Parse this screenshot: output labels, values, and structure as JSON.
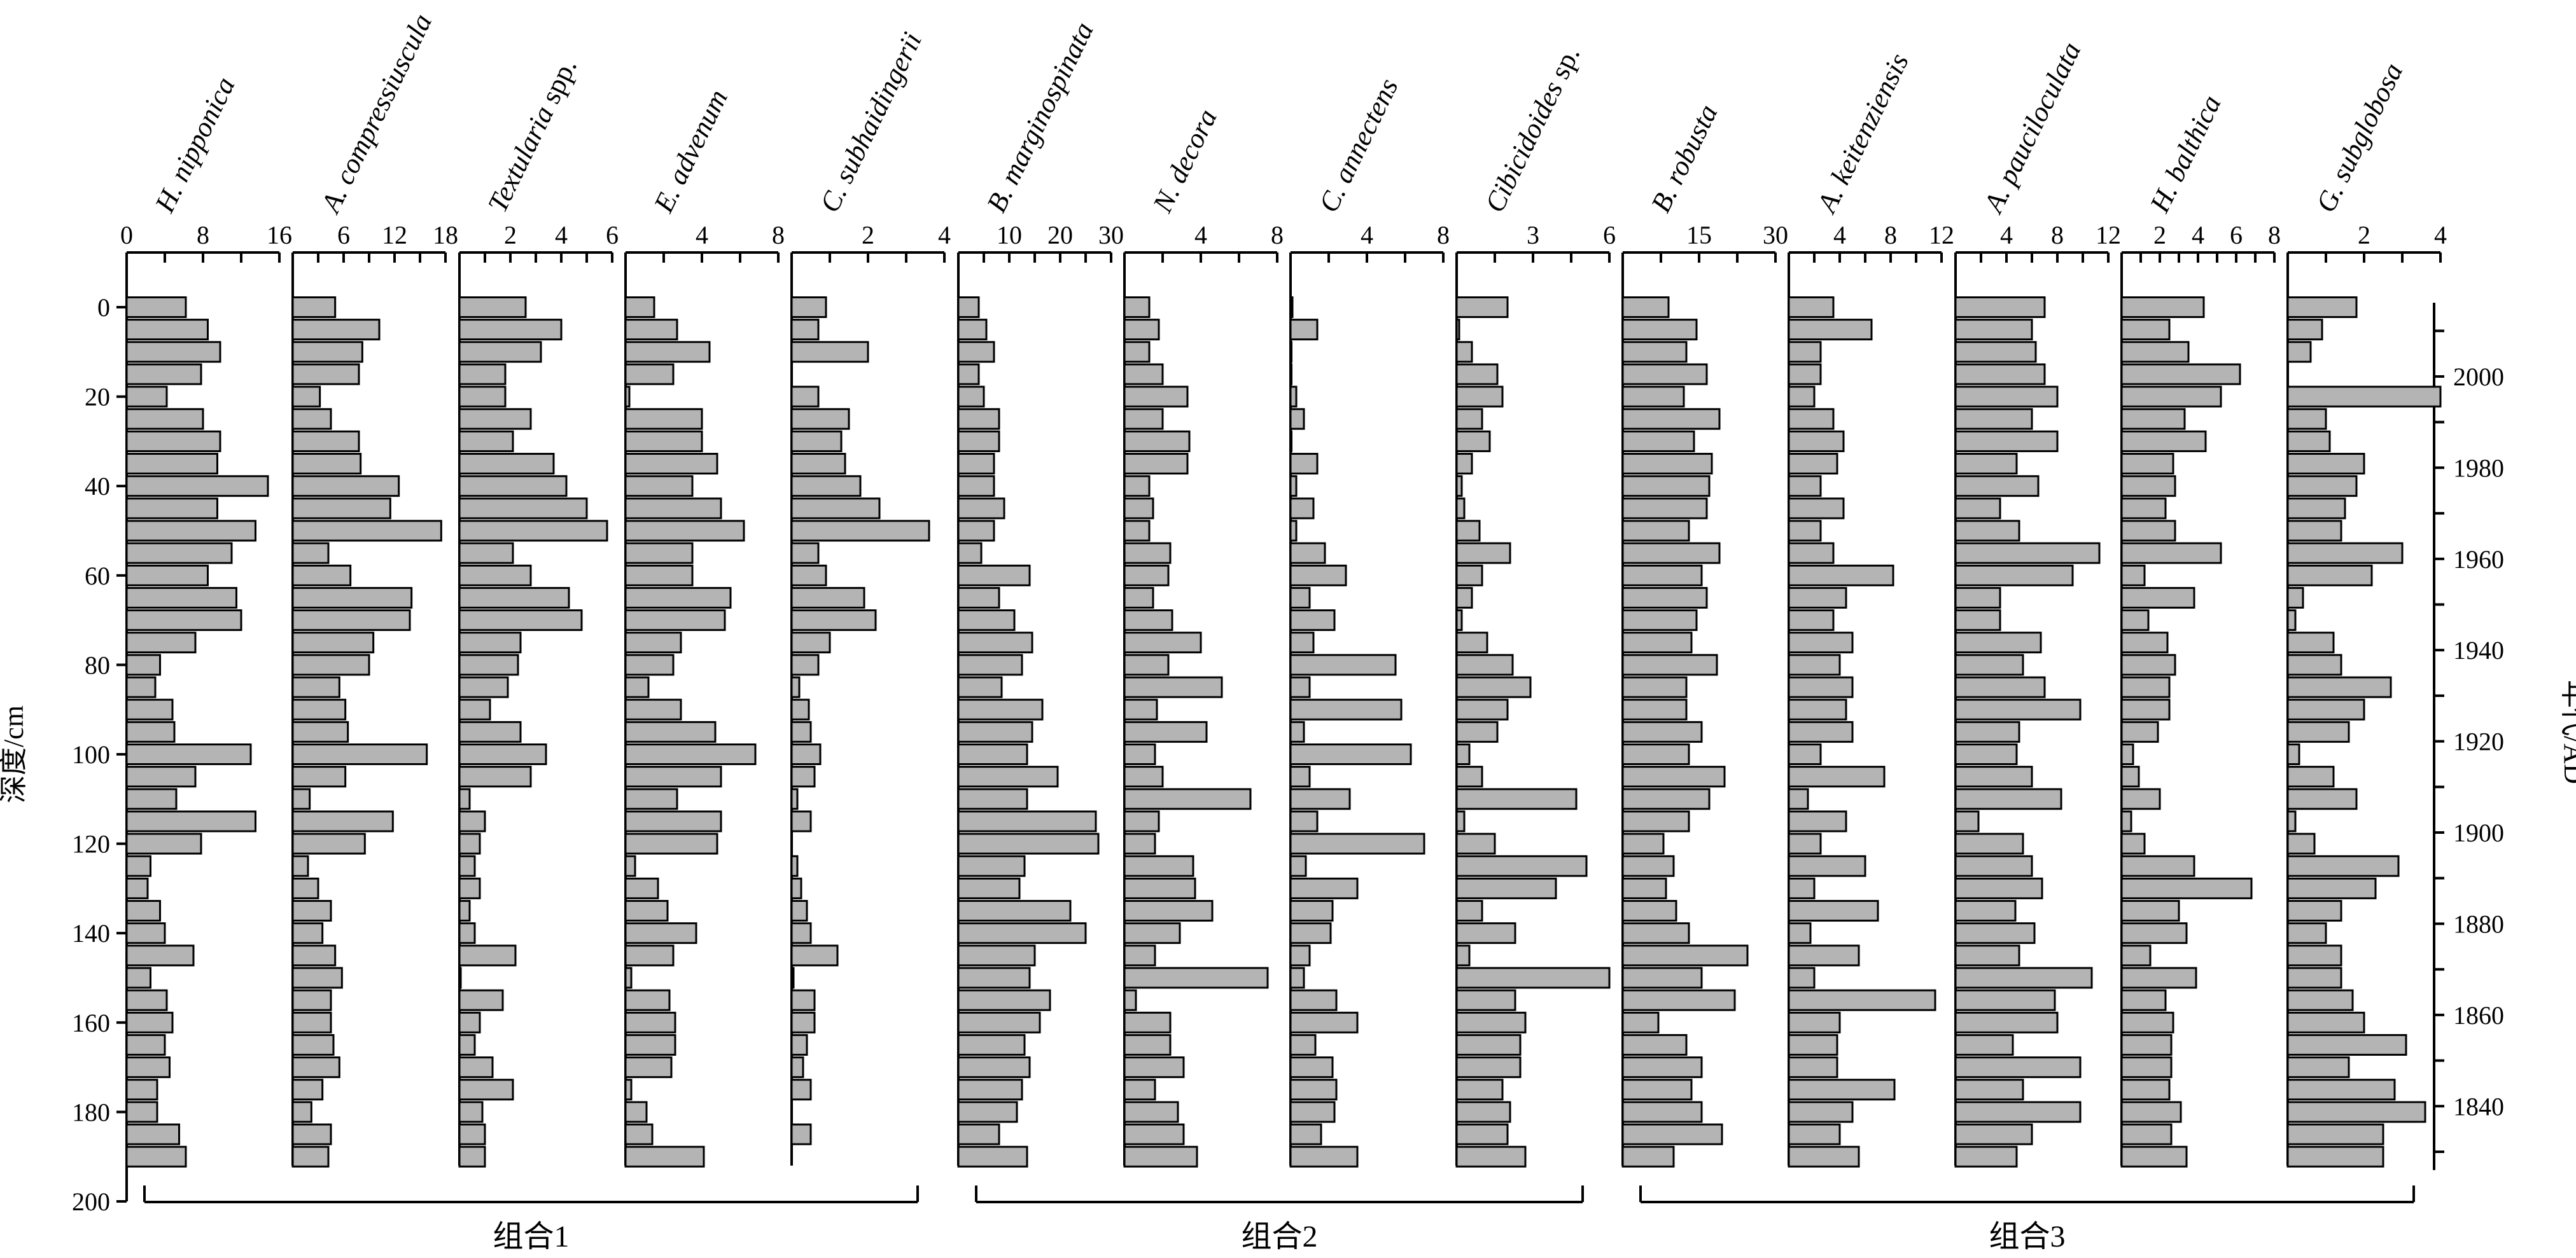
{
  "chart_data": {
    "type": "bar",
    "orientation": "horizontal",
    "ylabel": "深度/cm",
    "y2label": "年代/AD",
    "depth_ticks": [
      0,
      20,
      40,
      60,
      80,
      100,
      120,
      140,
      160,
      180,
      200
    ],
    "depth_range": [
      0,
      200
    ],
    "age_ticks": [
      2000,
      1980,
      1960,
      1940,
      1920,
      1900,
      1880,
      1860,
      1840
    ],
    "depths": [
      0,
      5,
      10,
      15,
      20,
      25,
      30,
      35,
      40,
      45,
      50,
      55,
      60,
      65,
      70,
      75,
      80,
      85,
      90,
      95,
      100,
      105,
      110,
      115,
      120,
      125,
      130,
      135,
      140,
      145,
      150,
      155,
      160,
      165,
      170,
      175,
      180,
      185,
      190
    ],
    "groups": [
      {
        "label": "组合1",
        "from": 0,
        "to": 4
      },
      {
        "label": "组合2",
        "from": 5,
        "to": 8
      },
      {
        "label": "组合3",
        "from": 9,
        "to": 13
      }
    ],
    "series": [
      {
        "name": "H. nipponica",
        "name_suffix": "",
        "max": 16,
        "ticks": [
          0,
          8,
          16
        ],
        "tick_labels": [
          "0",
          "8",
          "16"
        ],
        "values": [
          6.2,
          8.5,
          9.8,
          7.8,
          4.2,
          8.0,
          9.8,
          9.5,
          14.8,
          9.5,
          13.5,
          11.0,
          8.5,
          11.5,
          12.0,
          7.2,
          3.5,
          3.0,
          4.8,
          5.0,
          13.0,
          7.2,
          5.2,
          13.5,
          7.8,
          2.5,
          2.2,
          3.5,
          4.0,
          7.0,
          2.5,
          4.2,
          4.8,
          4.0,
          4.5,
          3.2,
          3.2,
          5.5,
          6.2
        ]
      },
      {
        "name": "A. compressiuscula",
        "name_suffix": "",
        "max": 18,
        "ticks": [
          6,
          12,
          18
        ],
        "tick_labels": [
          "6",
          "12",
          "18"
        ],
        "values": [
          5.0,
          10.2,
          8.2,
          7.8,
          3.2,
          4.5,
          7.8,
          8.0,
          12.5,
          11.5,
          17.5,
          4.2,
          6.8,
          14.0,
          13.8,
          9.5,
          9.0,
          5.5,
          6.2,
          6.5,
          15.8,
          6.2,
          2.0,
          11.8,
          8.5,
          1.8,
          3.0,
          4.5,
          3.5,
          5.0,
          5.8,
          4.5,
          4.5,
          4.8,
          5.5,
          3.5,
          2.2,
          4.5,
          4.2
        ]
      },
      {
        "name": "Textularia",
        "name_suffix": " spp.",
        "max": 6,
        "ticks": [
          2,
          4,
          6
        ],
        "tick_labels": [
          "2",
          "4",
          "6"
        ],
        "values": [
          2.6,
          4.0,
          3.2,
          1.8,
          1.8,
          2.8,
          2.1,
          3.7,
          4.2,
          5.0,
          5.8,
          2.1,
          2.8,
          4.3,
          4.8,
          2.4,
          2.3,
          1.9,
          1.2,
          2.4,
          3.4,
          2.8,
          0.4,
          1.0,
          0.8,
          0.6,
          0.8,
          0.4,
          0.6,
          2.2,
          0.05,
          1.7,
          0.8,
          0.6,
          1.3,
          2.1,
          0.9,
          1.0,
          1.0
        ]
      },
      {
        "name": "E. advenum",
        "name_suffix": "",
        "max": 8,
        "ticks": [
          4,
          8
        ],
        "tick_labels": [
          "4",
          "8"
        ],
        "values": [
          1.5,
          2.7,
          4.4,
          2.5,
          0.2,
          4.0,
          4.0,
          4.8,
          3.5,
          5.0,
          6.2,
          3.5,
          3.5,
          5.5,
          5.2,
          2.9,
          2.5,
          1.2,
          2.9,
          4.7,
          6.8,
          5.0,
          2.7,
          5.0,
          4.8,
          0.5,
          1.7,
          2.2,
          3.7,
          2.5,
          0.3,
          2.3,
          2.6,
          2.6,
          2.4,
          0.3,
          1.1,
          1.4,
          4.1
        ]
      },
      {
        "name": "C. subhaidingerii",
        "name_suffix": "",
        "max": 4,
        "ticks": [
          2,
          4
        ],
        "tick_labels": [
          "2",
          "4"
        ],
        "values": [
          0.9,
          0.7,
          2.0,
          0.0,
          0.7,
          1.5,
          1.3,
          1.4,
          1.8,
          2.3,
          3.6,
          0.7,
          0.9,
          1.9,
          2.2,
          1.0,
          0.7,
          0.2,
          0.45,
          0.5,
          0.75,
          0.6,
          0.15,
          0.5,
          0.0,
          0.15,
          0.25,
          0.4,
          0.5,
          1.2,
          0.05,
          0.6,
          0.6,
          0.4,
          0.3,
          0.5,
          0.0,
          0.5,
          0.0
        ]
      },
      {
        "name": "B. marginospinata",
        "name_suffix": "",
        "max": 30,
        "ticks": [
          10,
          20,
          30
        ],
        "tick_labels": [
          "10",
          "20",
          "30"
        ],
        "values": [
          4.0,
          5.5,
          7.0,
          4.0,
          5.0,
          8.0,
          8.0,
          7.0,
          7.0,
          9.0,
          7.0,
          4.5,
          14.0,
          8.0,
          11.0,
          14.5,
          12.5,
          8.5,
          16.5,
          14.5,
          13.5,
          19.5,
          13.5,
          27.0,
          27.5,
          13.0,
          12.0,
          22.0,
          25.0,
          15.0,
          14.0,
          18.0,
          16.0,
          13.0,
          14.0,
          12.5,
          11.5,
          8.0,
          13.5
        ]
      },
      {
        "name": "N. decora",
        "name_suffix": "",
        "max": 8,
        "ticks": [
          4,
          8
        ],
        "tick_labels": [
          "4",
          "8"
        ],
        "values": [
          1.3,
          1.8,
          1.3,
          2.0,
          3.3,
          2.0,
          3.4,
          3.3,
          1.3,
          1.5,
          1.3,
          2.4,
          2.3,
          1.5,
          2.5,
          4.0,
          2.3,
          5.1,
          1.7,
          4.3,
          1.6,
          2.0,
          6.6,
          1.8,
          1.6,
          3.6,
          3.7,
          4.6,
          2.9,
          1.6,
          7.5,
          0.6,
          2.4,
          2.4,
          3.1,
          1.6,
          2.8,
          3.1,
          3.8
        ]
      },
      {
        "name": "C. annectens",
        "name_suffix": "",
        "max": 8,
        "ticks": [
          4,
          8
        ],
        "tick_labels": [
          "4",
          "8"
        ],
        "values": [
          0.1,
          1.4,
          0.05,
          0.05,
          0.3,
          0.7,
          0.05,
          1.4,
          0.3,
          1.2,
          0.3,
          1.8,
          2.9,
          1.0,
          2.3,
          1.2,
          5.5,
          1.0,
          5.8,
          0.7,
          6.3,
          1.0,
          3.1,
          1.4,
          7.0,
          0.8,
          3.5,
          2.2,
          2.1,
          1.0,
          0.7,
          2.4,
          3.5,
          1.3,
          2.2,
          2.4,
          2.3,
          1.6,
          3.5
        ]
      },
      {
        "name": "Cibicidoides",
        "name_suffix": " sp.",
        "max": 6,
        "ticks": [
          3,
          6
        ],
        "tick_labels": [
          "3",
          "6"
        ],
        "values": [
          2.0,
          0.1,
          0.6,
          1.6,
          1.8,
          1.0,
          1.3,
          0.6,
          0.2,
          0.3,
          0.9,
          2.1,
          1.0,
          0.6,
          0.2,
          1.2,
          2.2,
          2.9,
          2.0,
          1.6,
          0.5,
          1.0,
          4.7,
          0.3,
          1.5,
          5.1,
          3.9,
          1.0,
          2.3,
          0.5,
          6.0,
          2.3,
          2.7,
          2.5,
          2.5,
          1.8,
          2.1,
          2.0,
          2.7
        ]
      },
      {
        "name": "B. robusta",
        "name_suffix": "",
        "max": 30,
        "ticks": [
          15,
          30
        ],
        "tick_labels": [
          "15",
          "30"
        ],
        "values": [
          9.0,
          14.5,
          12.5,
          16.5,
          12.0,
          19.0,
          14.0,
          17.5,
          17.0,
          16.5,
          13.0,
          19.0,
          15.5,
          16.5,
          14.5,
          13.5,
          18.5,
          12.5,
          12.5,
          15.5,
          13.0,
          20.0,
          17.0,
          13.0,
          8.0,
          10.0,
          8.5,
          10.5,
          13.0,
          24.5,
          15.5,
          22.0,
          7.0,
          12.5,
          15.5,
          13.5,
          15.5,
          19.5,
          10.0
        ]
      },
      {
        "name": "A. keitenziensis",
        "name_suffix": "",
        "max": 12,
        "ticks": [
          4,
          8,
          12
        ],
        "tick_labels": [
          "4",
          "8",
          "12"
        ],
        "values": [
          3.5,
          6.5,
          2.5,
          2.5,
          2.0,
          3.5,
          4.3,
          3.8,
          2.5,
          4.3,
          2.5,
          3.5,
          8.2,
          4.5,
          3.5,
          5.0,
          4.0,
          5.0,
          4.5,
          5.0,
          2.5,
          7.5,
          1.5,
          4.5,
          2.5,
          6.0,
          2.0,
          7.0,
          1.7,
          5.5,
          2.0,
          11.5,
          4.0,
          3.8,
          3.8,
          8.3,
          5.0,
          4.0,
          5.5
        ]
      },
      {
        "name": "A. pauciloculata",
        "name_suffix": "",
        "max": 12,
        "ticks": [
          4,
          8,
          12
        ],
        "tick_labels": [
          "4",
          "8",
          "12"
        ],
        "values": [
          7.0,
          6.0,
          6.3,
          7.0,
          8.0,
          6.0,
          8.0,
          4.8,
          6.5,
          3.5,
          5.0,
          11.3,
          9.2,
          3.5,
          3.5,
          6.7,
          5.3,
          7.0,
          9.8,
          5.0,
          4.8,
          6.0,
          8.3,
          1.8,
          5.3,
          6.0,
          6.8,
          4.7,
          6.2,
          5.0,
          10.7,
          7.8,
          8.0,
          4.5,
          9.8,
          5.3,
          9.8,
          6.0,
          4.8
        ]
      },
      {
        "name": "H. balthica",
        "name_suffix": "",
        "max": 8,
        "ticks": [
          2,
          4,
          6,
          8
        ],
        "tick_labels": [
          "2",
          "4",
          "6",
          "8"
        ],
        "values": [
          4.3,
          2.5,
          3.5,
          6.2,
          5.2,
          3.3,
          4.4,
          2.7,
          2.8,
          2.3,
          2.8,
          5.2,
          1.2,
          3.8,
          1.4,
          2.4,
          2.8,
          2.5,
          2.5,
          1.9,
          0.6,
          0.9,
          2.0,
          0.5,
          1.2,
          3.8,
          6.8,
          3.0,
          3.4,
          1.5,
          3.9,
          2.3,
          2.7,
          2.6,
          2.6,
          2.5,
          3.1,
          2.6,
          3.4
        ]
      },
      {
        "name": "G. subglobosa",
        "name_suffix": "",
        "max": 4,
        "ticks": [
          2,
          4
        ],
        "tick_labels": [
          "2",
          "4"
        ],
        "values": [
          1.8,
          0.9,
          0.6,
          0.0,
          4.0,
          1.0,
          1.1,
          2.0,
          1.8,
          1.5,
          1.4,
          3.0,
          2.2,
          0.4,
          0.2,
          1.2,
          1.4,
          2.7,
          2.0,
          1.6,
          0.3,
          1.2,
          1.8,
          0.2,
          0.7,
          2.9,
          2.3,
          1.4,
          1.0,
          1.4,
          1.4,
          1.7,
          2.0,
          3.1,
          1.6,
          2.8,
          3.6,
          2.5,
          2.5
        ]
      }
    ]
  }
}
